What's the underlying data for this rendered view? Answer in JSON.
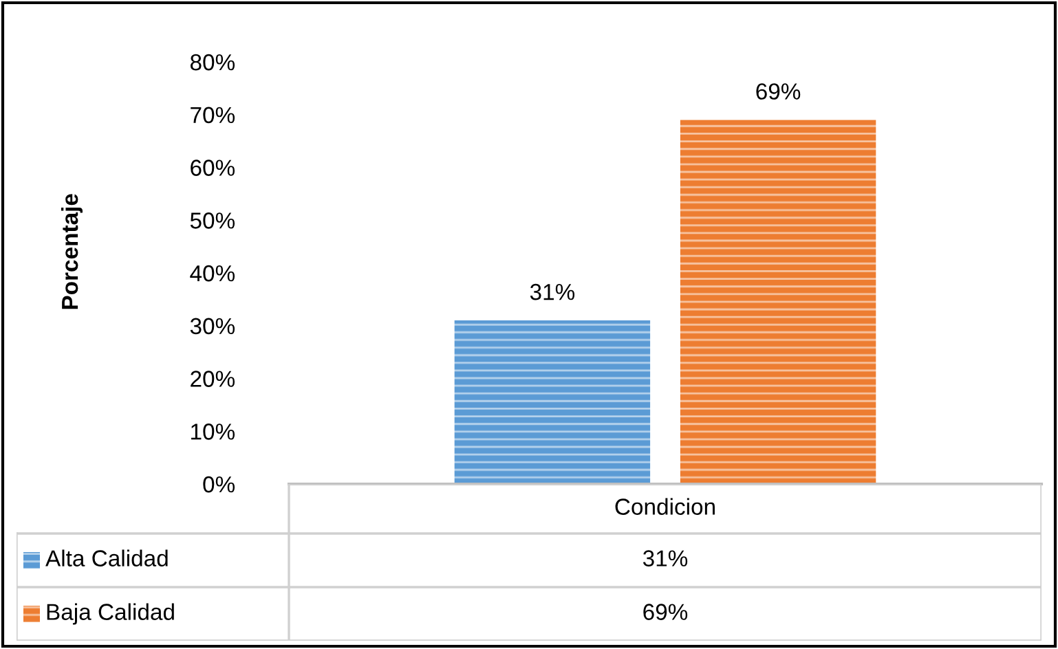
{
  "chart_data": {
    "type": "bar",
    "ylabel": "Porcentaje",
    "categories": [
      "Condicion"
    ],
    "series": [
      {
        "name": "Alta Calidad",
        "color": "#5b9bd5",
        "values": [
          31
        ],
        "value_labels": [
          "31%"
        ]
      },
      {
        "name": "Baja Calidad",
        "color": "#ed7d31",
        "values": [
          69
        ],
        "value_labels": [
          "69%"
        ]
      }
    ],
    "ylim": [
      0,
      80
    ],
    "yticks": [
      {
        "value": 0,
        "label": "0%"
      },
      {
        "value": 10,
        "label": "10%"
      },
      {
        "value": 20,
        "label": "20%"
      },
      {
        "value": 30,
        "label": "30%"
      },
      {
        "value": 40,
        "label": "40%"
      },
      {
        "value": 50,
        "label": "50%"
      },
      {
        "value": 60,
        "label": "60%"
      },
      {
        "value": 70,
        "label": "70%"
      },
      {
        "value": 80,
        "label": "80%"
      }
    ],
    "grid": false,
    "legend": "bottom"
  }
}
